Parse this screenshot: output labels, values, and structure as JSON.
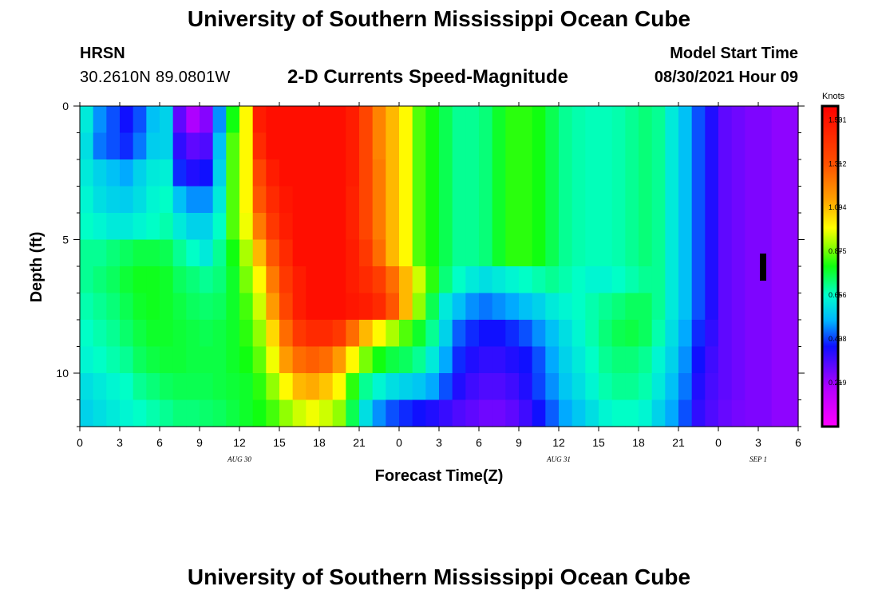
{
  "header": {
    "title": "University of Southern Mississippi Ocean Cube",
    "station": "HRSN",
    "coords": "30.2610N  89.0801W",
    "subtitle": "2-D Currents Speed-Magnitude",
    "model_start_label": "Model Start Time",
    "model_start_value": "08/30/2021 Hour 09"
  },
  "footer": {
    "title": "University of Southern Mississippi Ocean Cube"
  },
  "chart_data": {
    "type": "heatmap",
    "title": "2-D Currents Speed-Magnitude",
    "xlabel": "Forecast Time(Z)",
    "ylabel": "Depth (ft)",
    "x_range_hours": [
      0,
      54
    ],
    "x_ticks": [
      "0",
      "3",
      "6",
      "9",
      "12",
      "15",
      "18",
      "21",
      "0",
      "3",
      "6",
      "9",
      "12",
      "15",
      "18",
      "21",
      "0",
      "3",
      "6"
    ],
    "date_labels": [
      {
        "label": "AUG 30",
        "hour": 12
      },
      {
        "label": "AUG 31",
        "hour": 36
      },
      {
        "label": "SEP 1",
        "hour": 51
      }
    ],
    "y_range_ft": [
      0,
      12
    ],
    "y_ticks": [
      "0",
      "5",
      "10"
    ],
    "units": "Knots",
    "colorbar_ticks": [
      "1.531",
      "1.312",
      "1.094",
      "0.875",
      "0.656",
      "0.438",
      "0.219"
    ],
    "colorbar_range": [
      0,
      1.6
    ],
    "columns_hours": [
      0,
      1,
      2,
      3,
      4,
      5,
      6,
      7,
      8,
      9,
      10,
      11,
      12,
      13,
      14,
      15,
      16,
      17,
      18,
      19,
      20,
      21,
      22,
      23,
      24,
      25,
      26,
      27,
      28,
      29,
      30,
      31,
      32,
      33,
      34,
      35,
      36,
      37,
      38,
      39,
      40,
      41,
      42,
      43,
      44,
      45,
      46,
      47,
      48,
      49,
      50,
      51,
      52,
      53
    ],
    "rows_depth_ft": [
      0,
      1,
      2,
      3,
      4,
      5,
      6,
      7,
      8,
      9,
      10,
      11
    ],
    "speed_knots": [
      [
        0.62,
        0.5,
        0.45,
        0.4,
        0.45,
        0.55,
        0.58,
        0.3,
        0.2,
        0.25,
        0.5,
        0.8,
        1.0,
        1.5,
        1.55,
        1.55,
        1.55,
        1.55,
        1.55,
        1.55,
        1.5,
        1.35,
        1.2,
        1.1,
        1.0,
        0.85,
        0.8,
        0.75,
        0.7,
        0.7,
        0.72,
        0.78,
        0.82,
        0.82,
        0.8,
        0.75,
        0.7,
        0.68,
        0.67,
        0.67,
        0.68,
        0.7,
        0.72,
        0.7,
        0.62,
        0.55,
        0.45,
        0.38,
        0.3,
        0.28,
        0.26,
        0.26,
        0.24,
        0.24
      ],
      [
        0.6,
        0.48,
        0.45,
        0.42,
        0.48,
        0.57,
        0.58,
        0.36,
        0.3,
        0.32,
        0.55,
        0.85,
        1.0,
        1.45,
        1.55,
        1.55,
        1.55,
        1.55,
        1.55,
        1.55,
        1.5,
        1.35,
        1.2,
        1.1,
        1.0,
        0.85,
        0.8,
        0.75,
        0.7,
        0.7,
        0.72,
        0.78,
        0.82,
        0.82,
        0.8,
        0.75,
        0.7,
        0.68,
        0.67,
        0.67,
        0.68,
        0.7,
        0.72,
        0.7,
        0.62,
        0.55,
        0.45,
        0.38,
        0.3,
        0.28,
        0.26,
        0.26,
        0.24,
        0.24
      ],
      [
        0.62,
        0.58,
        0.55,
        0.52,
        0.58,
        0.62,
        0.63,
        0.42,
        0.38,
        0.4,
        0.58,
        0.85,
        1.0,
        1.35,
        1.5,
        1.55,
        1.55,
        1.55,
        1.55,
        1.55,
        1.5,
        1.35,
        1.22,
        1.1,
        1.0,
        0.85,
        0.8,
        0.75,
        0.7,
        0.7,
        0.72,
        0.78,
        0.82,
        0.82,
        0.8,
        0.75,
        0.7,
        0.68,
        0.67,
        0.67,
        0.68,
        0.7,
        0.72,
        0.7,
        0.62,
        0.55,
        0.45,
        0.38,
        0.3,
        0.28,
        0.26,
        0.26,
        0.24,
        0.24
      ],
      [
        0.64,
        0.6,
        0.58,
        0.57,
        0.6,
        0.64,
        0.66,
        0.55,
        0.5,
        0.5,
        0.62,
        0.85,
        1.0,
        1.3,
        1.45,
        1.52,
        1.55,
        1.55,
        1.55,
        1.55,
        1.48,
        1.35,
        1.22,
        1.1,
        1.0,
        0.85,
        0.8,
        0.75,
        0.7,
        0.7,
        0.72,
        0.78,
        0.82,
        0.82,
        0.8,
        0.75,
        0.7,
        0.68,
        0.67,
        0.67,
        0.68,
        0.7,
        0.72,
        0.7,
        0.62,
        0.55,
        0.45,
        0.38,
        0.3,
        0.28,
        0.26,
        0.26,
        0.24,
        0.24
      ],
      [
        0.66,
        0.64,
        0.62,
        0.62,
        0.64,
        0.66,
        0.68,
        0.62,
        0.58,
        0.58,
        0.66,
        0.85,
        0.98,
        1.22,
        1.4,
        1.5,
        1.55,
        1.55,
        1.55,
        1.55,
        1.48,
        1.35,
        1.22,
        1.1,
        1.0,
        0.85,
        0.8,
        0.75,
        0.7,
        0.7,
        0.72,
        0.78,
        0.82,
        0.82,
        0.8,
        0.75,
        0.7,
        0.68,
        0.67,
        0.67,
        0.68,
        0.7,
        0.72,
        0.7,
        0.62,
        0.55,
        0.45,
        0.38,
        0.3,
        0.28,
        0.26,
        0.26,
        0.24,
        0.24
      ],
      [
        0.7,
        0.7,
        0.72,
        0.74,
        0.76,
        0.76,
        0.75,
        0.7,
        0.66,
        0.62,
        0.7,
        0.8,
        0.92,
        1.1,
        1.3,
        1.45,
        1.55,
        1.55,
        1.55,
        1.55,
        1.5,
        1.4,
        1.25,
        1.1,
        1.0,
        0.85,
        0.8,
        0.75,
        0.7,
        0.7,
        0.72,
        0.78,
        0.82,
        0.82,
        0.8,
        0.75,
        0.7,
        0.68,
        0.67,
        0.67,
        0.68,
        0.7,
        0.72,
        0.7,
        0.62,
        0.55,
        0.45,
        0.38,
        0.3,
        0.28,
        0.26,
        0.26,
        0.24,
        0.24
      ],
      [
        0.7,
        0.72,
        0.74,
        0.77,
        0.79,
        0.79,
        0.78,
        0.74,
        0.72,
        0.7,
        0.72,
        0.78,
        0.88,
        1.0,
        1.22,
        1.4,
        1.5,
        1.55,
        1.55,
        1.55,
        1.5,
        1.45,
        1.38,
        1.25,
        1.1,
        0.95,
        0.82,
        0.72,
        0.66,
        0.62,
        0.6,
        0.62,
        0.64,
        0.66,
        0.68,
        0.7,
        0.68,
        0.66,
        0.64,
        0.64,
        0.66,
        0.68,
        0.7,
        0.7,
        0.62,
        0.55,
        0.45,
        0.38,
        0.3,
        0.28,
        0.26,
        0.26,
        0.24,
        0.24
      ],
      [
        0.68,
        0.7,
        0.72,
        0.75,
        0.78,
        0.79,
        0.78,
        0.76,
        0.74,
        0.73,
        0.74,
        0.78,
        0.84,
        0.95,
        1.15,
        1.35,
        1.5,
        1.55,
        1.55,
        1.55,
        1.52,
        1.5,
        1.45,
        1.3,
        1.1,
        0.9,
        0.75,
        0.62,
        0.55,
        0.5,
        0.48,
        0.5,
        0.52,
        0.55,
        0.58,
        0.62,
        0.64,
        0.66,
        0.68,
        0.7,
        0.72,
        0.74,
        0.74,
        0.7,
        0.62,
        0.55,
        0.45,
        0.38,
        0.3,
        0.28,
        0.26,
        0.26,
        0.24,
        0.24
      ],
      [
        0.66,
        0.68,
        0.7,
        0.73,
        0.76,
        0.78,
        0.78,
        0.77,
        0.76,
        0.75,
        0.76,
        0.78,
        0.82,
        0.9,
        1.05,
        1.25,
        1.4,
        1.45,
        1.45,
        1.4,
        1.25,
        1.1,
        1.0,
        0.92,
        0.85,
        0.78,
        0.7,
        0.58,
        0.46,
        0.42,
        0.4,
        0.4,
        0.42,
        0.45,
        0.5,
        0.55,
        0.6,
        0.64,
        0.68,
        0.72,
        0.75,
        0.76,
        0.74,
        0.68,
        0.6,
        0.52,
        0.42,
        0.36,
        0.3,
        0.28,
        0.26,
        0.26,
        0.24,
        0.24
      ],
      [
        0.64,
        0.66,
        0.68,
        0.7,
        0.74,
        0.76,
        0.77,
        0.77,
        0.76,
        0.76,
        0.76,
        0.78,
        0.8,
        0.86,
        0.98,
        1.15,
        1.25,
        1.28,
        1.25,
        1.15,
        1.0,
        0.88,
        0.8,
        0.76,
        0.74,
        0.7,
        0.62,
        0.52,
        0.42,
        0.38,
        0.36,
        0.36,
        0.38,
        0.4,
        0.45,
        0.52,
        0.58,
        0.62,
        0.66,
        0.7,
        0.72,
        0.72,
        0.7,
        0.64,
        0.58,
        0.5,
        0.4,
        0.34,
        0.3,
        0.28,
        0.26,
        0.26,
        0.24,
        0.24
      ],
      [
        0.6,
        0.62,
        0.64,
        0.66,
        0.7,
        0.72,
        0.74,
        0.75,
        0.75,
        0.75,
        0.76,
        0.77,
        0.78,
        0.82,
        0.9,
        1.0,
        1.1,
        1.12,
        1.08,
        1.0,
        0.82,
        0.7,
        0.64,
        0.6,
        0.58,
        0.56,
        0.52,
        0.45,
        0.38,
        0.34,
        0.32,
        0.32,
        0.34,
        0.38,
        0.44,
        0.5,
        0.56,
        0.6,
        0.64,
        0.68,
        0.7,
        0.7,
        0.68,
        0.62,
        0.55,
        0.48,
        0.38,
        0.33,
        0.3,
        0.28,
        0.26,
        0.26,
        0.24,
        0.24
      ],
      [
        0.58,
        0.6,
        0.62,
        0.64,
        0.66,
        0.68,
        0.7,
        0.72,
        0.72,
        0.73,
        0.74,
        0.76,
        0.78,
        0.8,
        0.84,
        0.9,
        0.95,
        0.98,
        0.95,
        0.9,
        0.75,
        0.6,
        0.5,
        0.45,
        0.42,
        0.4,
        0.38,
        0.35,
        0.32,
        0.3,
        0.28,
        0.28,
        0.3,
        0.34,
        0.4,
        0.46,
        0.52,
        0.56,
        0.6,
        0.64,
        0.66,
        0.66,
        0.64,
        0.58,
        0.52,
        0.45,
        0.36,
        0.32,
        0.29,
        0.27,
        0.26,
        0.26,
        0.24,
        0.24
      ]
    ]
  }
}
